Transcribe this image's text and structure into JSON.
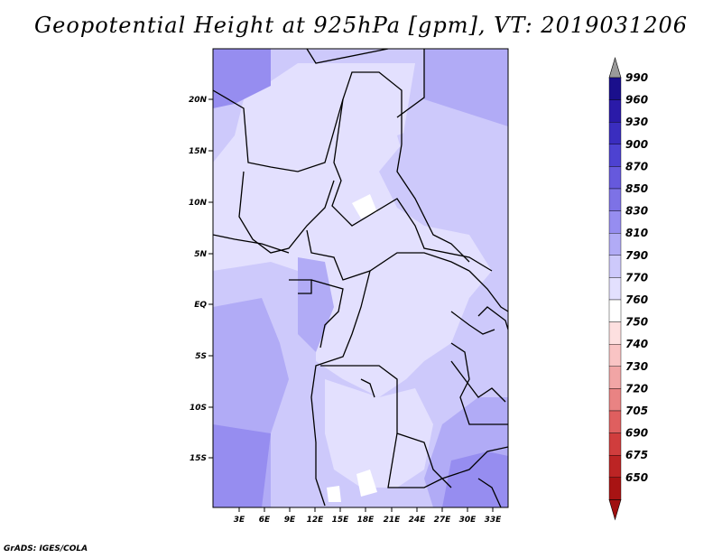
{
  "title": "Geopotential Height at 925hPa [gpm], VT: 2019031206",
  "footer": "GrADS: IGES/COLA",
  "chart_data": {
    "type": "heatmap",
    "variable": "Geopotential Height",
    "level": "925hPa",
    "units": "gpm",
    "valid_time": "2019031206",
    "lat_labels": [
      "20N",
      "15N",
      "10N",
      "5N",
      "EQ",
      "5S",
      "10S",
      "15S"
    ],
    "lon_labels": [
      "3E",
      "6E",
      "9E",
      "12E",
      "15E",
      "18E",
      "21E",
      "24E",
      "27E",
      "30E",
      "33E"
    ],
    "colorbar": {
      "levels": [
        "990",
        "960",
        "930",
        "900",
        "870",
        "850",
        "830",
        "810",
        "790",
        "770",
        "760",
        "750",
        "740",
        "730",
        "720",
        "705",
        "690",
        "675",
        "650"
      ],
      "colors": [
        "#1a0f8c",
        "#2a1aa8",
        "#3a2dbf",
        "#4d42d1",
        "#6659dd",
        "#7d72e6",
        "#968df0",
        "#b1abf6",
        "#cdc9fb",
        "#e3e0fe",
        "#ffffff",
        "#fde0e0",
        "#f9c4c4",
        "#f1a5a5",
        "#e98383",
        "#df5f5f",
        "#d03d3d",
        "#bc2424",
        "#a81313"
      ],
      "top_triangle_color": "#9a9a9a",
      "bottom_triangle_color": "#a01010"
    }
  }
}
